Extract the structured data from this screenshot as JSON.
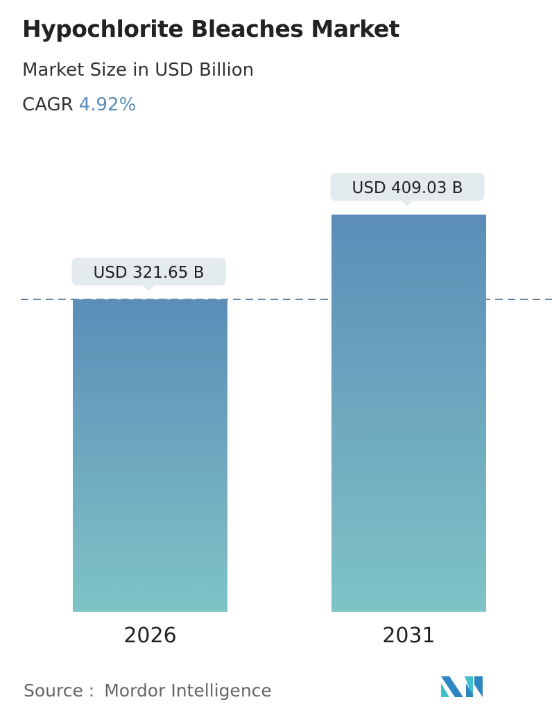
{
  "header": {
    "title": "Hypochlorite Bleaches Market",
    "subtitle": "Market Size in USD Billion",
    "cagr_label": "CAGR",
    "cagr_value": "4.92%"
  },
  "chart_data": {
    "type": "bar",
    "categories": [
      "2026",
      "2031"
    ],
    "values": [
      321.65,
      409.03
    ],
    "data_labels": [
      "USD 321.65 B",
      "USD 409.03 B"
    ],
    "unit": "USD Billion",
    "ylim": [
      0,
      409.03
    ],
    "grid": false,
    "reference_line": {
      "style": "dashed",
      "value": 321.65
    },
    "colors": {
      "bar_top": "#5b8db8",
      "bar_bottom": "#7fc3c6",
      "label_bg": "#e3ebee",
      "dash": "#5a7f9e"
    }
  },
  "footer": {
    "source_label": "Source :",
    "source_value": "Mordor Intelligence",
    "logo_text": "MI"
  }
}
